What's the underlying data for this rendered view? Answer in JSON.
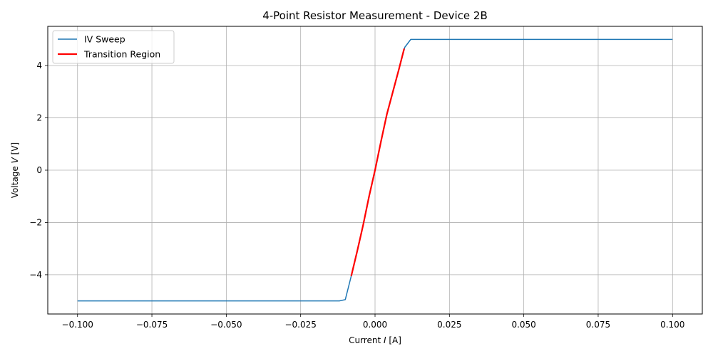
{
  "chart_data": {
    "type": "line",
    "title": "4-Point Resistor Measurement - Device 2B",
    "xlabel": "Current I [A]",
    "ylabel": "Voltage V [V]",
    "xlabel_parts": {
      "pre": "Current ",
      "sym": "I",
      "post": " [A]"
    },
    "ylabel_parts": {
      "pre": "Voltage ",
      "sym": "V",
      "post": " [V]"
    },
    "xlim": [
      -0.11,
      0.11
    ],
    "ylim": [
      -5.5,
      5.5
    ],
    "xticks": [
      -0.1,
      -0.075,
      -0.05,
      -0.025,
      0.0,
      0.025,
      0.05,
      0.075,
      0.1
    ],
    "xtick_labels": [
      "−0.100",
      "−0.075",
      "−0.050",
      "−0.025",
      "0.000",
      "0.025",
      "0.050",
      "0.075",
      "0.100"
    ],
    "yticks": [
      -4,
      -2,
      0,
      2,
      4
    ],
    "ytick_labels": [
      "−4",
      "−2",
      "0",
      "2",
      "4"
    ],
    "grid": true,
    "legend_position": "top-left",
    "series": [
      {
        "name": "IV Sweep",
        "color": "#1f77b4",
        "x": [
          -0.1,
          -0.012,
          -0.01,
          -0.008,
          -0.006,
          -0.004,
          -0.002,
          0.0,
          0.002,
          0.004,
          0.006,
          0.008,
          0.01,
          0.012,
          0.1
        ],
        "y": [
          -5.0,
          -5.0,
          -4.95,
          -4.05,
          -3.1,
          -2.1,
          -1.0,
          0.0,
          1.1,
          2.15,
          3.0,
          3.85,
          4.7,
          5.0,
          5.0
        ]
      },
      {
        "name": "Transition Region",
        "color": "#ff0000",
        "x": [
          -0.008,
          -0.006,
          -0.004,
          -0.002,
          0.0,
          0.002,
          0.004,
          0.006,
          0.008,
          0.0098
        ],
        "y": [
          -4.05,
          -3.1,
          -2.1,
          -1.0,
          0.0,
          1.1,
          2.15,
          3.0,
          3.85,
          4.65
        ]
      }
    ]
  }
}
